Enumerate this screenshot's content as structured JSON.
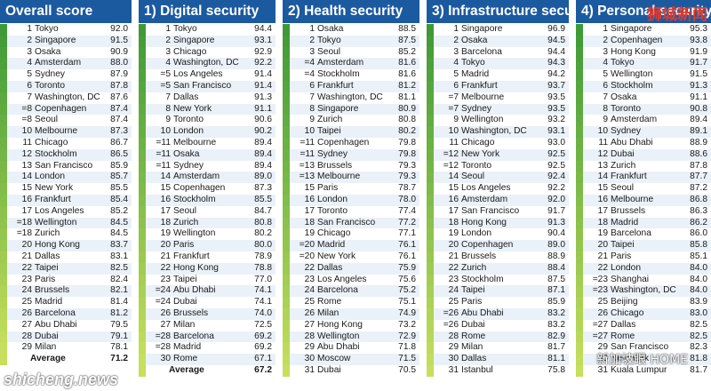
{
  "chart_data": {
    "type": "table",
    "panels": [
      {
        "title": "Overall score",
        "rows": [
          {
            "rank": "1",
            "city": "Tokyo",
            "score": "92.0"
          },
          {
            "rank": "2",
            "city": "Singapore",
            "score": "91.5"
          },
          {
            "rank": "3",
            "city": "Osaka",
            "score": "90.9"
          },
          {
            "rank": "4",
            "city": "Amsterdam",
            "score": "88.0"
          },
          {
            "rank": "5",
            "city": "Sydney",
            "score": "87.9"
          },
          {
            "rank": "6",
            "city": "Toronto",
            "score": "87.8"
          },
          {
            "rank": "7",
            "city": "Washington, DC",
            "score": "87.6"
          },
          {
            "rank": "=8",
            "city": "Copenhagen",
            "score": "87.4"
          },
          {
            "rank": "=8",
            "city": "Seoul",
            "score": "87.4"
          },
          {
            "rank": "10",
            "city": "Melbourne",
            "score": "87.3"
          },
          {
            "rank": "11",
            "city": "Chicago",
            "score": "86.7"
          },
          {
            "rank": "12",
            "city": "Stockholm",
            "score": "86.5"
          },
          {
            "rank": "13",
            "city": "San Francisco",
            "score": "85.9"
          },
          {
            "rank": "14",
            "city": "London",
            "score": "85.7"
          },
          {
            "rank": "15",
            "city": "New York",
            "score": "85.5"
          },
          {
            "rank": "16",
            "city": "Frankfurt",
            "score": "85.4"
          },
          {
            "rank": "17",
            "city": "Los Angeles",
            "score": "85.2"
          },
          {
            "rank": "=18",
            "city": "Wellington",
            "score": "84.5"
          },
          {
            "rank": "=18",
            "city": "Zurich",
            "score": "84.5"
          },
          {
            "rank": "20",
            "city": "Hong Kong",
            "score": "83.7"
          },
          {
            "rank": "21",
            "city": "Dallas",
            "score": "83.1"
          },
          {
            "rank": "22",
            "city": "Taipei",
            "score": "82.5"
          },
          {
            "rank": "23",
            "city": "Paris",
            "score": "82.4"
          },
          {
            "rank": "24",
            "city": "Brussels",
            "score": "82.1"
          },
          {
            "rank": "25",
            "city": "Madrid",
            "score": "81.4"
          },
          {
            "rank": "26",
            "city": "Barcelona",
            "score": "81.2"
          },
          {
            "rank": "27",
            "city": "Abu Dhabi",
            "score": "79.5"
          },
          {
            "rank": "28",
            "city": "Dubai",
            "score": "79.1"
          },
          {
            "rank": "29",
            "city": "Milan",
            "score": "78.1"
          }
        ],
        "average_label": "Average",
        "average_value": "71.2"
      },
      {
        "title": "1) Digital security",
        "rows": [
          {
            "rank": "1",
            "city": "Tokyo",
            "score": "94.4"
          },
          {
            "rank": "2",
            "city": "Singapore",
            "score": "93.1"
          },
          {
            "rank": "3",
            "city": "Chicago",
            "score": "92.9"
          },
          {
            "rank": "4",
            "city": "Washington, DC",
            "score": "92.2"
          },
          {
            "rank": "=5",
            "city": "Los Angeles",
            "score": "91.4"
          },
          {
            "rank": "=5",
            "city": "San Francisco",
            "score": "91.4"
          },
          {
            "rank": "7",
            "city": "Dallas",
            "score": "91.3"
          },
          {
            "rank": "8",
            "city": "New York",
            "score": "91.1"
          },
          {
            "rank": "9",
            "city": "Toronto",
            "score": "90.6"
          },
          {
            "rank": "10",
            "city": "London",
            "score": "90.2"
          },
          {
            "rank": "=11",
            "city": "Melbourne",
            "score": "89.4"
          },
          {
            "rank": "=11",
            "city": "Osaka",
            "score": "89.4"
          },
          {
            "rank": "=11",
            "city": "Sydney",
            "score": "89.4"
          },
          {
            "rank": "14",
            "city": "Amsterdam",
            "score": "89.0"
          },
          {
            "rank": "15",
            "city": "Copenhagen",
            "score": "87.3"
          },
          {
            "rank": "16",
            "city": "Stockholm",
            "score": "85.5"
          },
          {
            "rank": "17",
            "city": "Seoul",
            "score": "84.7"
          },
          {
            "rank": "18",
            "city": "Zurich",
            "score": "80.8"
          },
          {
            "rank": "19",
            "city": "Wellington",
            "score": "80.2"
          },
          {
            "rank": "20",
            "city": "Paris",
            "score": "80.0"
          },
          {
            "rank": "21",
            "city": "Frankfurt",
            "score": "78.9"
          },
          {
            "rank": "22",
            "city": "Hong Kong",
            "score": "78.8"
          },
          {
            "rank": "23",
            "city": "Taipei",
            "score": "77.0"
          },
          {
            "rank": "=24",
            "city": "Abu Dhabi",
            "score": "74.1"
          },
          {
            "rank": "=24",
            "city": "Dubai",
            "score": "74.1"
          },
          {
            "rank": "26",
            "city": "Brussels",
            "score": "74.0"
          },
          {
            "rank": "27",
            "city": "Milan",
            "score": "72.5"
          },
          {
            "rank": "=28",
            "city": "Barcelona",
            "score": "69.2"
          },
          {
            "rank": "=28",
            "city": "Madrid",
            "score": "69.2"
          },
          {
            "rank": "30",
            "city": "Rome",
            "score": "67.1"
          }
        ],
        "average_label": "Average",
        "average_value": "67.2"
      },
      {
        "title": "2) Health security",
        "rows": [
          {
            "rank": "1",
            "city": "Osaka",
            "score": "88.5"
          },
          {
            "rank": "2",
            "city": "Tokyo",
            "score": "87.5"
          },
          {
            "rank": "3",
            "city": "Seoul",
            "score": "85.2"
          },
          {
            "rank": "=4",
            "city": "Amsterdam",
            "score": "81.6"
          },
          {
            "rank": "=4",
            "city": "Stockholm",
            "score": "81.6"
          },
          {
            "rank": "6",
            "city": "Frankfurt",
            "score": "81.2"
          },
          {
            "rank": "7",
            "city": "Washington, DC",
            "score": "81.1"
          },
          {
            "rank": "8",
            "city": "Singapore",
            "score": "80.9"
          },
          {
            "rank": "9",
            "city": "Zurich",
            "score": "80.8"
          },
          {
            "rank": "10",
            "city": "Taipei",
            "score": "80.2"
          },
          {
            "rank": "=11",
            "city": "Copenhagen",
            "score": "79.8"
          },
          {
            "rank": "=11",
            "city": "Sydney",
            "score": "79.8"
          },
          {
            "rank": "=13",
            "city": "Brussels",
            "score": "79.3"
          },
          {
            "rank": "=13",
            "city": "Melbourne",
            "score": "79.3"
          },
          {
            "rank": "15",
            "city": "Paris",
            "score": "78.7"
          },
          {
            "rank": "16",
            "city": "London",
            "score": "78.0"
          },
          {
            "rank": "17",
            "city": "Toronto",
            "score": "77.4"
          },
          {
            "rank": "18",
            "city": "San Francisco",
            "score": "77.2"
          },
          {
            "rank": "19",
            "city": "Chicago",
            "score": "77.1"
          },
          {
            "rank": "=20",
            "city": "Madrid",
            "score": "76.1"
          },
          {
            "rank": "=20",
            "city": "New York",
            "score": "76.1"
          },
          {
            "rank": "22",
            "city": "Dallas",
            "score": "75.9"
          },
          {
            "rank": "23",
            "city": "Los Angeles",
            "score": "75.6"
          },
          {
            "rank": "24",
            "city": "Barcelona",
            "score": "75.2"
          },
          {
            "rank": "25",
            "city": "Rome",
            "score": "75.1"
          },
          {
            "rank": "26",
            "city": "Milan",
            "score": "74.9"
          },
          {
            "rank": "27",
            "city": "Hong Kong",
            "score": "73.2"
          },
          {
            "rank": "28",
            "city": "Wellington",
            "score": "72.9"
          },
          {
            "rank": "29",
            "city": "Abu Dhabi",
            "score": "71.8"
          },
          {
            "rank": "30",
            "city": "Moscow",
            "score": "71.5"
          },
          {
            "rank": "31",
            "city": "Dubai",
            "score": "70.5"
          }
        ]
      },
      {
        "title": "3) Infrastructure security",
        "rows": [
          {
            "rank": "1",
            "city": "Singapore",
            "score": "96.9"
          },
          {
            "rank": "2",
            "city": "Osaka",
            "score": "94.5"
          },
          {
            "rank": "3",
            "city": "Barcelona",
            "score": "94.4"
          },
          {
            "rank": "4",
            "city": "Tokyo",
            "score": "94.3"
          },
          {
            "rank": "5",
            "city": "Madrid",
            "score": "94.2"
          },
          {
            "rank": "6",
            "city": "Frankfurt",
            "score": "93.7"
          },
          {
            "rank": "=7",
            "city": "Melbourne",
            "score": "93.5"
          },
          {
            "rank": "=7",
            "city": "Sydney",
            "score": "93.5"
          },
          {
            "rank": "9",
            "city": "Wellington",
            "score": "93.2"
          },
          {
            "rank": "10",
            "city": "Washington, DC",
            "score": "93.1"
          },
          {
            "rank": "11",
            "city": "Chicago",
            "score": "93.0"
          },
          {
            "rank": "=12",
            "city": "New York",
            "score": "92.5"
          },
          {
            "rank": "=12",
            "city": "Toronto",
            "score": "92.5"
          },
          {
            "rank": "14",
            "city": "Seoul",
            "score": "92.4"
          },
          {
            "rank": "15",
            "city": "Los Angeles",
            "score": "92.2"
          },
          {
            "rank": "16",
            "city": "Amsterdam",
            "score": "92.0"
          },
          {
            "rank": "17",
            "city": "San Francisco",
            "score": "91.7"
          },
          {
            "rank": "18",
            "city": "Hong Kong",
            "score": "91.3"
          },
          {
            "rank": "19",
            "city": "London",
            "score": "90.4"
          },
          {
            "rank": "20",
            "city": "Copenhagen",
            "score": "89.0"
          },
          {
            "rank": "21",
            "city": "Brussels",
            "score": "88.9"
          },
          {
            "rank": "22",
            "city": "Zurich",
            "score": "88.4"
          },
          {
            "rank": "23",
            "city": "Stockholm",
            "score": "87.5"
          },
          {
            "rank": "24",
            "city": "Taipei",
            "score": "87.1"
          },
          {
            "rank": "25",
            "city": "Paris",
            "score": "85.9"
          },
          {
            "rank": "=26",
            "city": "Abu Dhabi",
            "score": "83.2"
          },
          {
            "rank": "=26",
            "city": "Dubai",
            "score": "83.2"
          },
          {
            "rank": "28",
            "city": "Rome",
            "score": "82.9"
          },
          {
            "rank": "29",
            "city": "Milan",
            "score": "81.7"
          },
          {
            "rank": "30",
            "city": "Dallas",
            "score": "81.1"
          },
          {
            "rank": "31",
            "city": "Istanbul",
            "score": "75.8"
          }
        ]
      },
      {
        "title": "4) Personal security",
        "rows": [
          {
            "rank": "1",
            "city": "Singapore",
            "score": "95.3"
          },
          {
            "rank": "2",
            "city": "Copenhagen",
            "score": "93.8"
          },
          {
            "rank": "3",
            "city": "Hong Kong",
            "score": "91.9"
          },
          {
            "rank": "4",
            "city": "Tokyo",
            "score": "91.7"
          },
          {
            "rank": "5",
            "city": "Wellington",
            "score": "91.5"
          },
          {
            "rank": "6",
            "city": "Stockholm",
            "score": "91.3"
          },
          {
            "rank": "7",
            "city": "Osaka",
            "score": "91.1"
          },
          {
            "rank": "8",
            "city": "Toronto",
            "score": "90.8"
          },
          {
            "rank": "9",
            "city": "Amsterdam",
            "score": "89.4"
          },
          {
            "rank": "10",
            "city": "Sydney",
            "score": "89.1"
          },
          {
            "rank": "11",
            "city": "Abu Dhabi",
            "score": "88.9"
          },
          {
            "rank": "12",
            "city": "Dubai",
            "score": "88.6"
          },
          {
            "rank": "13",
            "city": "Zurich",
            "score": "87.8"
          },
          {
            "rank": "14",
            "city": "Frankfurt",
            "score": "87.7"
          },
          {
            "rank": "15",
            "city": "Seoul",
            "score": "87.2"
          },
          {
            "rank": "16",
            "city": "Melbourne",
            "score": "86.8"
          },
          {
            "rank": "17",
            "city": "Brussels",
            "score": "86.3"
          },
          {
            "rank": "18",
            "city": "Madrid",
            "score": "86.2"
          },
          {
            "rank": "19",
            "city": "Barcelona",
            "score": "86.0"
          },
          {
            "rank": "20",
            "city": "Taipei",
            "score": "85.8"
          },
          {
            "rank": "21",
            "city": "Paris",
            "score": "85.1"
          },
          {
            "rank": "22",
            "city": "London",
            "score": "84.0"
          },
          {
            "rank": "=23",
            "city": "Shanghai",
            "score": "84.0"
          },
          {
            "rank": "=23",
            "city": "Washington, DC",
            "score": "84.0"
          },
          {
            "rank": "25",
            "city": "Beijing",
            "score": "83.9"
          },
          {
            "rank": "26",
            "city": "Chicago",
            "score": "83.0"
          },
          {
            "rank": "=27",
            "city": "Dallas",
            "score": "82.5"
          },
          {
            "rank": "=27",
            "city": "Rome",
            "score": "82.5"
          },
          {
            "rank": "29",
            "city": "San Francisco",
            "score": "82.3"
          },
          {
            "rank": "30",
            "city": "New York",
            "score": "81.8"
          },
          {
            "rank": "31",
            "city": "Kuala Lumpur",
            "score": "81.7"
          }
        ]
      }
    ],
    "colors": {
      "header_bg": "#1c5aa0",
      "header_text": "#ffffff",
      "row_alt": "#eaf1f8",
      "strip_top": "#3e9a37",
      "strip_bottom": "#c6df5c"
    }
  },
  "watermarks": {
    "top_right": "狮城新闻",
    "bottom_left": "shicheng.news",
    "bottom_right": "新加坡眼 HOME"
  }
}
